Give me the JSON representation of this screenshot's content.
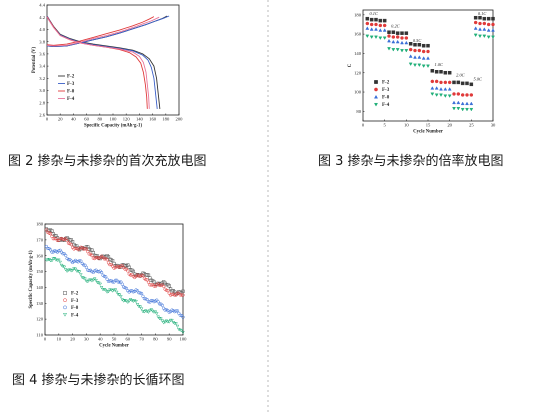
{
  "captions": {
    "fig2": "图 2 掺杂与未掺杂的首次充放电图",
    "fig3": "图 3 掺杂与未掺杂的倍率放电图",
    "fig4": "图 4 掺杂与未掺杂的长循环图"
  },
  "chart_data": [
    {
      "id": "fig2",
      "type": "line",
      "xlabel": "Specific Capacity (mAh·g-1)",
      "ylabel": "Potential (V)",
      "xlim": [
        0,
        200
      ],
      "ylim": [
        2.6,
        4.4
      ],
      "xticks": [
        "0",
        "20",
        "40",
        "60",
        "80",
        "100",
        "120",
        "140",
        "160",
        "180",
        "200"
      ],
      "yticks": [
        "2.6",
        "2.8",
        "3.0",
        "3.2",
        "3.4",
        "3.6",
        "3.8",
        "4.0",
        "4.2",
        "4.4"
      ],
      "legend_position": "lower-left",
      "series": [
        {
          "name": "F-2",
          "color": "#333333",
          "charge": [
            [
              0,
              3.73
            ],
            [
              10,
              3.72
            ],
            [
              30,
              3.73
            ],
            [
              50,
              3.78
            ],
            [
              70,
              3.83
            ],
            [
              90,
              3.88
            ],
            [
              110,
              3.94
            ],
            [
              130,
              4.01
            ],
            [
              150,
              4.08
            ],
            [
              165,
              4.14
            ],
            [
              175,
              4.18
            ],
            [
              182,
              4.22
            ]
          ],
          "discharge": [
            [
              0,
              4.22
            ],
            [
              10,
              4.05
            ],
            [
              20,
              3.92
            ],
            [
              35,
              3.85
            ],
            [
              50,
              3.8
            ],
            [
              70,
              3.76
            ],
            [
              90,
              3.73
            ],
            [
              110,
              3.7
            ],
            [
              130,
              3.66
            ],
            [
              145,
              3.6
            ],
            [
              155,
              3.52
            ],
            [
              162,
              3.4
            ],
            [
              166,
              3.2
            ],
            [
              168,
              3.0
            ],
            [
              170,
              2.8
            ],
            [
              171,
              2.7
            ]
          ]
        },
        {
          "name": "F-3",
          "color": "#3a5fc8",
          "charge": [
            [
              0,
              3.73
            ],
            [
              10,
              3.72
            ],
            [
              30,
              3.73
            ],
            [
              50,
              3.78
            ],
            [
              70,
              3.83
            ],
            [
              90,
              3.88
            ],
            [
              110,
              3.94
            ],
            [
              130,
              4.01
            ],
            [
              150,
              4.08
            ],
            [
              165,
              4.14
            ],
            [
              176,
              4.18
            ],
            [
              185,
              4.22
            ]
          ],
          "discharge": [
            [
              0,
              4.22
            ],
            [
              10,
              4.04
            ],
            [
              20,
              3.91
            ],
            [
              35,
              3.84
            ],
            [
              50,
              3.79
            ],
            [
              70,
              3.75
            ],
            [
              90,
              3.72
            ],
            [
              110,
              3.69
            ],
            [
              130,
              3.65
            ],
            [
              145,
              3.58
            ],
            [
              153,
              3.5
            ],
            [
              158,
              3.38
            ],
            [
              162,
              3.2
            ],
            [
              164,
              3.0
            ],
            [
              166,
              2.8
            ],
            [
              167,
              2.7
            ]
          ]
        },
        {
          "name": "F-0",
          "color": "#e03a3a",
          "charge": [
            [
              0,
              3.75
            ],
            [
              10,
              3.74
            ],
            [
              30,
              3.76
            ],
            [
              50,
              3.81
            ],
            [
              70,
              3.87
            ],
            [
              90,
              3.93
            ],
            [
              110,
              3.99
            ],
            [
              130,
              4.06
            ],
            [
              145,
              4.12
            ],
            [
              155,
              4.17
            ],
            [
              162,
              4.21
            ]
          ],
          "discharge": [
            [
              0,
              4.21
            ],
            [
              10,
              4.04
            ],
            [
              20,
              3.9
            ],
            [
              35,
              3.83
            ],
            [
              50,
              3.78
            ],
            [
              70,
              3.74
            ],
            [
              90,
              3.71
            ],
            [
              110,
              3.67
            ],
            [
              125,
              3.62
            ],
            [
              135,
              3.55
            ],
            [
              142,
              3.45
            ],
            [
              146,
              3.3
            ],
            [
              149,
              3.1
            ],
            [
              151,
              2.9
            ],
            [
              152,
              2.7
            ]
          ]
        },
        {
          "name": "F-4",
          "color": "#e8749a",
          "charge": [
            [
              0,
              3.74
            ],
            [
              10,
              3.73
            ],
            [
              30,
              3.74
            ],
            [
              50,
              3.79
            ],
            [
              70,
              3.85
            ],
            [
              90,
              3.9
            ],
            [
              110,
              3.96
            ],
            [
              130,
              4.03
            ],
            [
              145,
              4.09
            ],
            [
              158,
              4.14
            ],
            [
              166,
              4.18
            ],
            [
              170,
              4.2
            ]
          ],
          "discharge": [
            [
              0,
              4.2
            ],
            [
              10,
              4.03
            ],
            [
              20,
              3.9
            ],
            [
              35,
              3.83
            ],
            [
              50,
              3.78
            ],
            [
              70,
              3.74
            ],
            [
              90,
              3.71
            ],
            [
              110,
              3.68
            ],
            [
              130,
              3.63
            ],
            [
              140,
              3.56
            ],
            [
              146,
              3.46
            ],
            [
              150,
              3.3
            ],
            [
              152,
              3.1
            ],
            [
              154,
              2.9
            ],
            [
              155,
              2.7
            ]
          ]
        }
      ]
    },
    {
      "id": "fig3",
      "type": "scatter",
      "xlabel": "Cycle Number",
      "ylabel": "C",
      "xlim": [
        0,
        30
      ],
      "ylim": [
        70,
        185
      ],
      "xticks": [
        "0",
        "5",
        "10",
        "15",
        "20",
        "25",
        "30"
      ],
      "yticks": [
        "80",
        "100",
        "120",
        "140",
        "160",
        "180"
      ],
      "legend_position": "lower-left",
      "annotations": [
        {
          "text": "0.1C",
          "x": 1.5,
          "y": 180
        },
        {
          "text": "0.2C",
          "x": 6.5,
          "y": 167
        },
        {
          "text": "0.5C",
          "x": 11.5,
          "y": 152
        },
        {
          "text": "1.0C",
          "x": 16.5,
          "y": 127
        },
        {
          "text": "2.0C",
          "x": 21.5,
          "y": 116
        },
        {
          "text": "5.0C",
          "x": 25.5,
          "y": 112
        },
        {
          "text": "0.1C",
          "x": 26.5,
          "y": 180
        }
      ],
      "series": [
        {
          "name": "F-2",
          "color": "#333333",
          "marker": "square",
          "x": [
            1,
            2,
            3,
            4,
            5,
            6,
            7,
            8,
            9,
            10,
            11,
            12,
            13,
            14,
            15,
            16,
            17,
            18,
            19,
            20,
            21,
            22,
            23,
            24,
            25,
            26,
            27,
            28,
            29,
            30
          ],
          "y": [
            176,
            175,
            175,
            174,
            174,
            162,
            162,
            161,
            161,
            161,
            150,
            149,
            149,
            148,
            148,
            122,
            121,
            121,
            120,
            120,
            110,
            110,
            109,
            109,
            108,
            177,
            177,
            176,
            176,
            176
          ]
        },
        {
          "name": "F-3",
          "color": "#e03a3a",
          "marker": "circle",
          "x": [
            1,
            2,
            3,
            4,
            5,
            6,
            7,
            8,
            9,
            10,
            11,
            12,
            13,
            14,
            15,
            16,
            17,
            18,
            19,
            20,
            21,
            22,
            23,
            24,
            25,
            26,
            27,
            28,
            29,
            30
          ],
          "y": [
            171,
            170,
            170,
            169,
            169,
            158,
            157,
            157,
            156,
            156,
            144,
            143,
            143,
            142,
            142,
            111,
            111,
            110,
            110,
            110,
            98,
            98,
            97,
            97,
            97,
            172,
            171,
            171,
            170,
            170
          ]
        },
        {
          "name": "F-0",
          "color": "#3a6fd8",
          "marker": "triangle",
          "x": [
            1,
            2,
            3,
            4,
            5,
            6,
            7,
            8,
            9,
            10,
            11,
            12,
            13,
            14,
            15,
            16,
            17,
            18,
            19,
            20,
            21,
            22,
            23,
            24,
            25,
            26,
            27,
            28,
            29,
            30
          ],
          "y": [
            166,
            165,
            165,
            164,
            164,
            153,
            152,
            152,
            151,
            151,
            137,
            136,
            136,
            135,
            135,
            104,
            104,
            103,
            103,
            103,
            89,
            89,
            88,
            88,
            88,
            166,
            165,
            165,
            164,
            164
          ]
        },
        {
          "name": "F-4",
          "color": "#22b07a",
          "marker": "triangle-down",
          "x": [
            1,
            2,
            3,
            4,
            5,
            6,
            7,
            8,
            9,
            10,
            11,
            12,
            13,
            14,
            15,
            16,
            17,
            18,
            19,
            20,
            21,
            22,
            23,
            24,
            25,
            26,
            27,
            28,
            29,
            30
          ],
          "y": [
            158,
            157,
            157,
            156,
            156,
            145,
            144,
            144,
            143,
            143,
            129,
            128,
            128,
            127,
            127,
            98,
            97,
            97,
            96,
            96,
            83,
            83,
            82,
            82,
            82,
            159,
            158,
            158,
            157,
            157
          ]
        }
      ]
    },
    {
      "id": "fig4",
      "type": "scatter",
      "xlabel": "Cycle Number",
      "ylabel": "Specific Capacity (mAh·g-1)",
      "xlim": [
        0,
        100
      ],
      "ylim": [
        110,
        180
      ],
      "xticks": [
        "0",
        "10",
        "20",
        "30",
        "40",
        "50",
        "60",
        "70",
        "80",
        "90",
        "100"
      ],
      "yticks": [
        "110",
        "120",
        "130",
        "140",
        "150",
        "160",
        "170",
        "180"
      ],
      "legend_position": "lower-left",
      "series": [
        {
          "name": "F-2",
          "color": "#555555",
          "marker": "square-open",
          "start": 175.5,
          "end": 136,
          "wobble": 1.6
        },
        {
          "name": "F-3",
          "color": "#e03a3a",
          "marker": "circle-open",
          "start": 174.5,
          "end": 133.5,
          "wobble": 1.5
        },
        {
          "name": "F-0",
          "color": "#3a6fd8",
          "marker": "circle-open",
          "start": 166,
          "end": 121.5,
          "wobble": 1.4
        },
        {
          "name": "F-4",
          "color": "#22b07a",
          "marker": "triangle-down-open",
          "start": 159.5,
          "end": 113.5,
          "wobble": 1.7
        }
      ]
    }
  ]
}
